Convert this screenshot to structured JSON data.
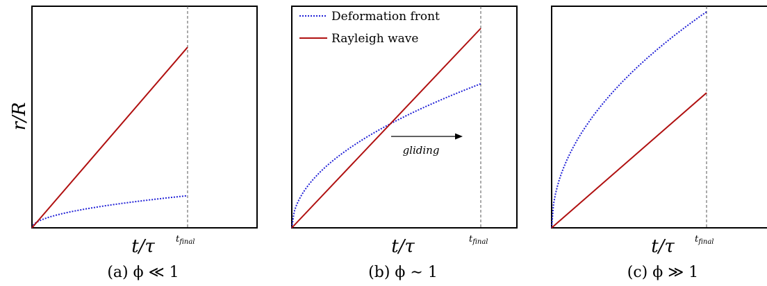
{
  "ylabel": "r/R",
  "xlabel": "t/τ",
  "tfinal_label": "t_final",
  "tfinal_sub": "final",
  "legend": {
    "deformation": "Deformation front",
    "rayleigh": "Rayleigh wave"
  },
  "annotation": "gliding",
  "colors": {
    "deformation": "#1f1fd6",
    "rayleigh": "#b01010",
    "frame": "#000000",
    "tfinal_line": "#555555"
  },
  "panels": [
    {
      "caption": "(a) ϕ ≪ 1",
      "rayleigh_end": 0.815,
      "deformation_end": 0.145,
      "deformation_exponent": 0.5
    },
    {
      "caption": "(b) ϕ ∼ 1",
      "rayleigh_end": 0.9,
      "deformation_end": 0.65,
      "deformation_exponent": 0.5
    },
    {
      "caption": "(c) ϕ ≫ 1",
      "rayleigh_end": 0.625,
      "deformation_end": 1.0,
      "deformation_exponent": 0.5
    }
  ]
}
